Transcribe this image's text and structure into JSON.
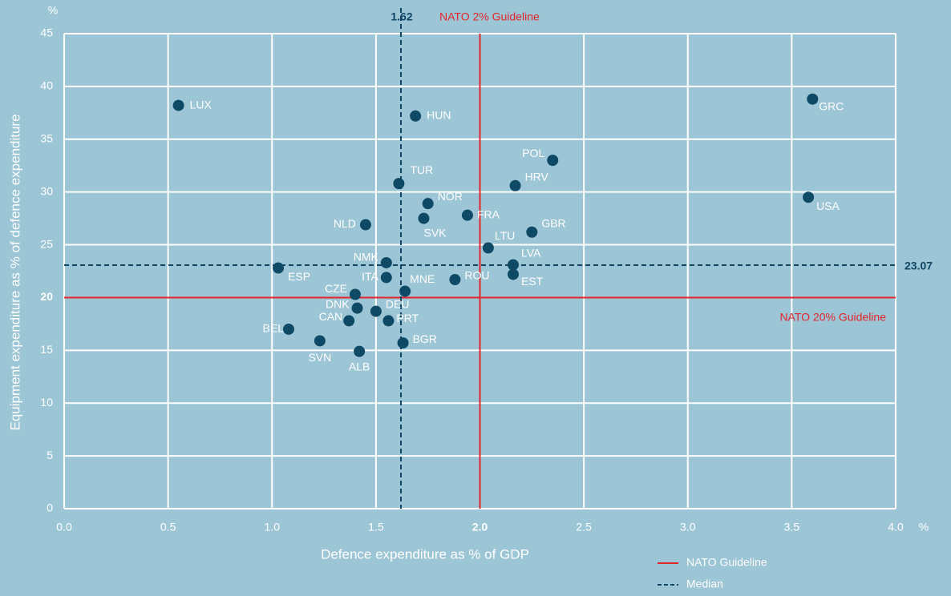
{
  "chart_data": {
    "type": "scatter",
    "x_label": "Defence expenditure as % of GDP",
    "y_label": "Equipment expenditure as % of defence expenditure",
    "x_unit": "%",
    "y_unit": "%",
    "xlim": [
      0,
      4
    ],
    "ylim": [
      0,
      45
    ],
    "xticks": [
      {
        "value": 0,
        "label": "0.0"
      },
      {
        "value": 0.5,
        "label": "0.5"
      },
      {
        "value": 1,
        "label": "1.0"
      },
      {
        "value": 1.5,
        "label": "1.5"
      },
      {
        "value": 2,
        "label": "2.0"
      },
      {
        "value": 2.5,
        "label": "2.5"
      },
      {
        "value": 3,
        "label": "3.0"
      },
      {
        "value": 3.5,
        "label": "3.5"
      },
      {
        "value": 4,
        "label": "4.0"
      }
    ],
    "yticks": [
      0,
      5,
      10,
      15,
      20,
      25,
      30,
      35,
      40,
      45
    ],
    "grid": true,
    "color": "#0e4a66",
    "labels": [
      "LUX",
      "HUN",
      "GRC",
      "POL",
      "TUR",
      "HRV",
      "USA",
      "NOR",
      "FRA",
      "SVK",
      "NLD",
      "GBR",
      "LTU",
      "NMK",
      "LVA",
      "ESP",
      "EST",
      "ITA",
      "ROU",
      "MNE",
      "CZE",
      "DNK",
      "DEU",
      "CAN",
      "PRT",
      "BEL",
      "SVN",
      "BGR",
      "ALB"
    ],
    "x": [
      0.55,
      1.69,
      3.6,
      2.35,
      1.61,
      2.17,
      3.58,
      1.75,
      1.94,
      1.73,
      1.45,
      2.25,
      2.04,
      1.55,
      2.16,
      1.03,
      2.16,
      1.55,
      1.88,
      1.64,
      1.4,
      1.41,
      1.5,
      1.37,
      1.56,
      1.08,
      1.23,
      1.63,
      1.42
    ],
    "y": [
      38.2,
      37.2,
      38.8,
      33.0,
      30.8,
      30.6,
      29.5,
      28.9,
      27.8,
      27.5,
      26.9,
      26.2,
      24.7,
      23.3,
      23.1,
      22.8,
      22.2,
      21.9,
      21.7,
      20.6,
      20.3,
      19.0,
      18.7,
      17.8,
      17.8,
      17.0,
      15.9,
      15.7,
      14.9
    ],
    "reference_lines": [
      {
        "axis": "x",
        "value": 2,
        "label": "NATO 2% Guideline",
        "color": "#e3262b",
        "style": "solid"
      },
      {
        "axis": "y",
        "value": 20,
        "label": "NATO 20% Guideline",
        "color": "#e3262b",
        "style": "solid"
      },
      {
        "axis": "x",
        "value": 1.62,
        "color": "#0f4563",
        "style": "dashed"
      },
      {
        "axis": "y",
        "value": 23.07,
        "color": "#0f4563",
        "style": "dashed"
      }
    ],
    "legend": [
      {
        "name": "NATO Guideline",
        "color": "#e3262b",
        "style": "solid"
      },
      {
        "name": "Median",
        "color": "#0f4563",
        "style": "dashed"
      }
    ]
  }
}
